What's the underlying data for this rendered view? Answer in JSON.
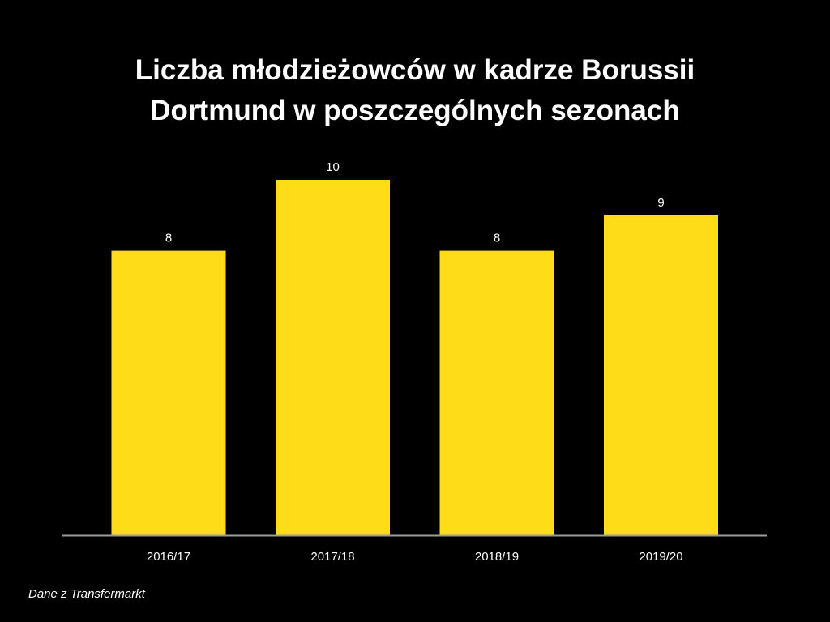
{
  "chart_data": {
    "type": "bar",
    "title_lines": [
      "Liczba młodzieżowców w kadrze Borussii",
      "Dortmund w poszczególnych sezonach"
    ],
    "categories": [
      "2016/17",
      "2017/18",
      "2018/19",
      "2019/20"
    ],
    "values": [
      8,
      10,
      8,
      9
    ],
    "data_labels": [
      "8",
      "10",
      "8",
      "9"
    ],
    "xlabel": "",
    "ylabel": "",
    "ylim": [
      0,
      10
    ],
    "grid": false,
    "legend": "none",
    "colors": {
      "bar": "#FFDB18",
      "background": "#000000",
      "axis": "#9a9a9a",
      "text": "#ffffff"
    }
  },
  "source": "Dane z Transfermarkt"
}
